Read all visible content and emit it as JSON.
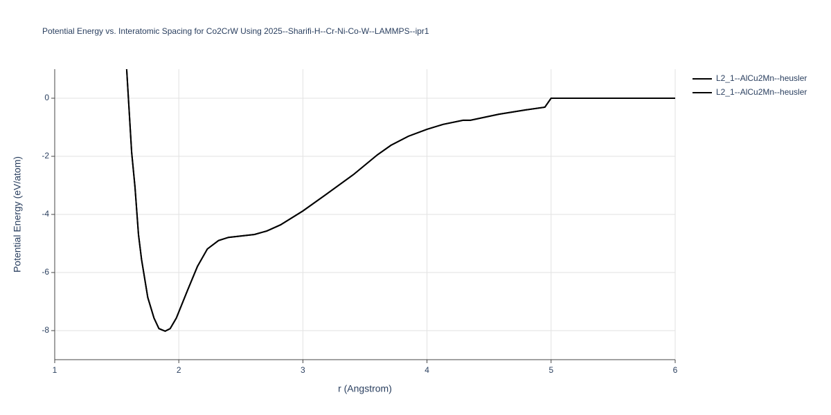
{
  "chart_data": {
    "type": "line",
    "title": "Potential Energy vs. Interatomic Spacing for Co2CrW Using 2025--Sharifi-H--Cr-Ni-Co-W--LAMMPS--ipr1",
    "x_label": "r (Angstrom)",
    "y_label": "Potential Energy (eV/atom)",
    "xlim": [
      1,
      6
    ],
    "ylim": [
      -9,
      1
    ],
    "xticks": [
      1,
      2,
      3,
      4,
      5,
      6
    ],
    "yticks": [
      -8,
      -6,
      -4,
      -2,
      0
    ],
    "grid": true,
    "legend": "right",
    "x": [
      1.58,
      1.62,
      1.647,
      1.675,
      1.7,
      1.75,
      1.8,
      1.84,
      1.89,
      1.93,
      1.98,
      2.07,
      2.15,
      2.23,
      2.32,
      2.4,
      2.61,
      2.71,
      2.82,
      3.0,
      3.18,
      3.41,
      3.6,
      3.71,
      3.85,
      4.0,
      4.13,
      4.29,
      4.35,
      4.58,
      4.8,
      4.95,
      5.0,
      6.0
    ],
    "series": [
      {
        "name": "L2_1--AlCu2Mn--heusler",
        "color": "#000000",
        "values": [
          1.0,
          -1.86,
          -3.05,
          -4.7,
          -5.55,
          -6.86,
          -7.57,
          -7.93,
          -8.02,
          -7.93,
          -7.57,
          -6.62,
          -5.79,
          -5.19,
          -4.9,
          -4.79,
          -4.69,
          -4.57,
          -4.36,
          -3.88,
          -3.33,
          -2.62,
          -1.95,
          -1.62,
          -1.31,
          -1.07,
          -0.9,
          -0.76,
          -0.76,
          -0.55,
          -0.4,
          -0.31,
          0,
          0
        ]
      },
      {
        "name": "L2_1--AlCu2Mn--heusler",
        "color": "#000000",
        "values": [
          1.0,
          -1.86,
          -3.05,
          -4.7,
          -5.55,
          -6.86,
          -7.57,
          -7.93,
          -8.02,
          -7.93,
          -7.57,
          -6.62,
          -5.79,
          -5.19,
          -4.9,
          -4.79,
          -4.69,
          -4.57,
          -4.36,
          -3.88,
          -3.33,
          -2.62,
          -1.95,
          -1.62,
          -1.31,
          -1.07,
          -0.9,
          -0.76,
          -0.76,
          -0.55,
          -0.4,
          -0.31,
          0,
          0
        ]
      }
    ]
  }
}
